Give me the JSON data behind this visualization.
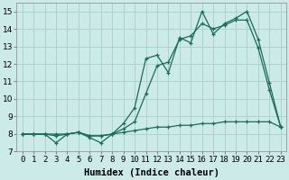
{
  "xlabel": "Humidex (Indice chaleur)",
  "background_color": "#cceae7",
  "line_color": "#1a6b5a",
  "grid_color": "#aad4cf",
  "x_values": [
    0,
    1,
    2,
    3,
    4,
    5,
    6,
    7,
    8,
    9,
    10,
    11,
    12,
    13,
    14,
    15,
    16,
    17,
    18,
    19,
    20,
    21,
    22,
    23
  ],
  "line1": [
    8.0,
    8.0,
    8.0,
    7.5,
    8.0,
    8.1,
    7.8,
    7.5,
    8.0,
    8.6,
    9.5,
    12.3,
    12.5,
    11.5,
    13.5,
    13.2,
    15.0,
    13.7,
    14.3,
    14.6,
    15.0,
    13.4,
    10.9,
    8.4
  ],
  "line2": [
    8.0,
    8.0,
    8.0,
    8.0,
    8.0,
    8.1,
    7.9,
    7.9,
    8.0,
    8.3,
    8.7,
    10.3,
    11.9,
    12.1,
    13.4,
    13.6,
    14.3,
    14.0,
    14.2,
    14.5,
    14.5,
    12.9,
    10.5,
    8.4
  ],
  "line3": [
    8.0,
    8.0,
    8.0,
    7.9,
    8.0,
    8.1,
    7.9,
    7.9,
    8.0,
    8.1,
    8.2,
    8.3,
    8.4,
    8.4,
    8.5,
    8.5,
    8.6,
    8.6,
    8.7,
    8.7,
    8.7,
    8.7,
    8.7,
    8.4
  ],
  "ylim": [
    7.0,
    15.5
  ],
  "xlim": [
    -0.5,
    23.5
  ],
  "yticks": [
    7,
    8,
    9,
    10,
    11,
    12,
    13,
    14,
    15
  ],
  "xticks": [
    0,
    1,
    2,
    3,
    4,
    5,
    6,
    7,
    8,
    9,
    10,
    11,
    12,
    13,
    14,
    15,
    16,
    17,
    18,
    19,
    20,
    21,
    22,
    23
  ],
  "tick_fontsize": 6.5,
  "label_fontsize": 7.5
}
